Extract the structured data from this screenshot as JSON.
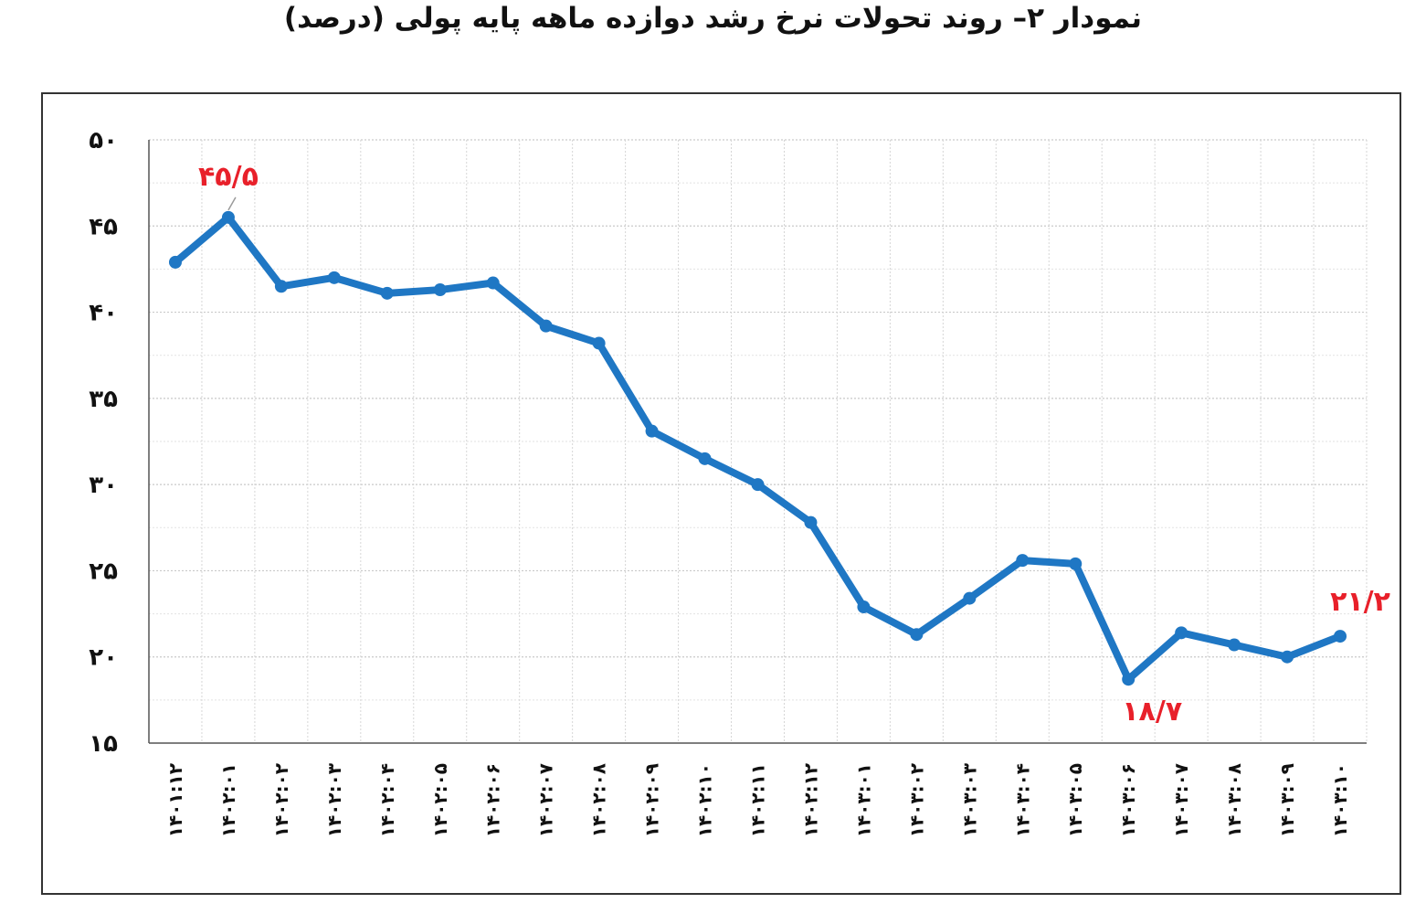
{
  "chart_data": {
    "type": "line",
    "title": "نمودار ۲– روند تحولات نرخ رشد دوازده ماهه پایه پولی (درصد)",
    "xlabel": "",
    "ylabel": "",
    "categories": [
      "۱۴۰۱:۱۲",
      "۱۴۰۲:۰۱",
      "۱۴۰۲:۰۲",
      "۱۴۰۲:۰۳",
      "۱۴۰۲:۰۴",
      "۱۴۰۲:۰۵",
      "۱۴۰۲:۰۶",
      "۱۴۰۲:۰۷",
      "۱۴۰۲:۰۸",
      "۱۴۰۲:۰۹",
      "۱۴۰۲:۱۰",
      "۱۴۰۲:۱۱",
      "۱۴۰۲:۱۲",
      "۱۴۰۳:۰۱",
      "۱۴۰۳:۰۲",
      "۱۴۰۳:۰۳",
      "۱۴۰۳:۰۴",
      "۱۴۰۳:۰۵",
      "۱۴۰۳:۰۶",
      "۱۴۰۳:۰۷",
      "۱۴۰۳:۰۸",
      "۱۴۰۳:۰۹",
      "۱۴۰۳:۱۰"
    ],
    "series": [
      {
        "name": "",
        "color": "#1f77c4",
        "values": [
          42.9,
          45.5,
          41.5,
          42.0,
          41.1,
          41.3,
          41.7,
          39.2,
          38.2,
          33.1,
          31.5,
          30.0,
          27.8,
          22.9,
          21.3,
          23.4,
          25.6,
          25.4,
          18.7,
          21.4,
          20.7,
          20.0,
          21.2
        ]
      }
    ],
    "ylim": [
      15,
      50
    ],
    "yticks": [
      15,
      20,
      25,
      30,
      35,
      40,
      45,
      50
    ],
    "ytick_labels": [
      "۱۵",
      "۲۰",
      "۲۵",
      "۳۰",
      "۳۵",
      "۴۰",
      "۴۵",
      "۵۰"
    ],
    "grid": true,
    "annotations": [
      {
        "index": 1,
        "text": "۴۵/۵",
        "color": "#e8202a"
      },
      {
        "index": 18,
        "text": "۱۸/۷",
        "color": "#e8202a"
      },
      {
        "index": 22,
        "text": "۲۱/۲",
        "color": "#e8202a"
      }
    ]
  }
}
